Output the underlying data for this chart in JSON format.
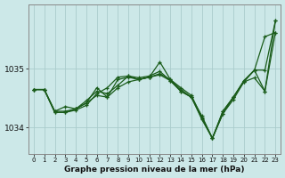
{
  "title": "Graphe pression niveau de la mer (hPa)",
  "bg_color": "#cce8e8",
  "grid_color": "#aacccc",
  "line_color": "#1a5c1a",
  "xlim": [
    -0.5,
    23.5
  ],
  "ylim": [
    1033.55,
    1036.1
  ],
  "yticks": [
    1034,
    1035
  ],
  "ytick_labels": [
    "1034",
    "1035"
  ],
  "xticks": [
    0,
    1,
    2,
    3,
    4,
    5,
    6,
    7,
    8,
    9,
    10,
    11,
    12,
    13,
    14,
    15,
    16,
    17,
    18,
    19,
    20,
    21,
    22,
    23
  ],
  "figsize": [
    3.2,
    2.0
  ],
  "dpi": 100,
  "lines": [
    {
      "x": [
        0,
        1,
        2,
        3,
        4,
        5,
        6,
        7,
        8,
        9,
        10,
        11,
        12,
        13,
        14,
        15,
        16,
        17,
        18,
        19,
        20,
        21,
        22,
        23
      ],
      "y": [
        1034.65,
        1034.65,
        1034.28,
        1034.28,
        1034.32,
        1034.42,
        1034.55,
        1034.52,
        1034.68,
        1034.78,
        1034.82,
        1034.86,
        1034.92,
        1034.82,
        1034.68,
        1034.55,
        1034.18,
        1033.82,
        1034.28,
        1034.52,
        1034.8,
        1034.98,
        1035.55,
        1035.62
      ]
    },
    {
      "x": [
        0,
        1,
        2,
        3,
        4,
        5,
        6,
        7,
        8,
        9,
        10,
        11,
        12,
        13,
        14,
        15,
        16,
        17,
        18,
        19,
        20,
        21,
        22,
        23
      ],
      "y": [
        1034.65,
        1034.65,
        1034.26,
        1034.26,
        1034.3,
        1034.38,
        1034.58,
        1034.68,
        1034.86,
        1034.88,
        1034.85,
        1034.88,
        1034.96,
        1034.8,
        1034.62,
        1034.52,
        1034.16,
        1033.82,
        1034.28,
        1034.52,
        1034.8,
        1034.98,
        1034.62,
        1035.62
      ]
    },
    {
      "x": [
        0,
        1,
        2,
        3,
        4,
        5,
        6,
        7,
        8,
        9,
        10,
        11,
        12,
        13,
        14,
        15,
        16,
        17,
        18,
        19,
        20,
        21,
        22,
        23
      ],
      "y": [
        1034.65,
        1034.65,
        1034.26,
        1034.26,
        1034.32,
        1034.42,
        1034.68,
        1034.52,
        1034.82,
        1034.86,
        1034.82,
        1034.86,
        1035.12,
        1034.82,
        1034.65,
        1034.52,
        1034.14,
        1033.82,
        1034.24,
        1034.52,
        1034.78,
        1034.98,
        1034.98,
        1035.82
      ]
    },
    {
      "x": [
        0,
        1,
        2,
        3,
        4,
        5,
        6,
        7,
        8,
        9,
        10,
        11,
        12,
        13,
        14,
        15,
        16,
        17,
        18,
        19,
        20,
        21,
        22,
        23
      ],
      "y": [
        1034.65,
        1034.65,
        1034.28,
        1034.36,
        1034.32,
        1034.46,
        1034.62,
        1034.58,
        1034.72,
        1034.88,
        1034.82,
        1034.86,
        1034.9,
        1034.8,
        1034.62,
        1034.52,
        1034.2,
        1033.82,
        1034.24,
        1034.48,
        1034.78,
        1034.85,
        1034.62,
        1035.82
      ]
    }
  ]
}
